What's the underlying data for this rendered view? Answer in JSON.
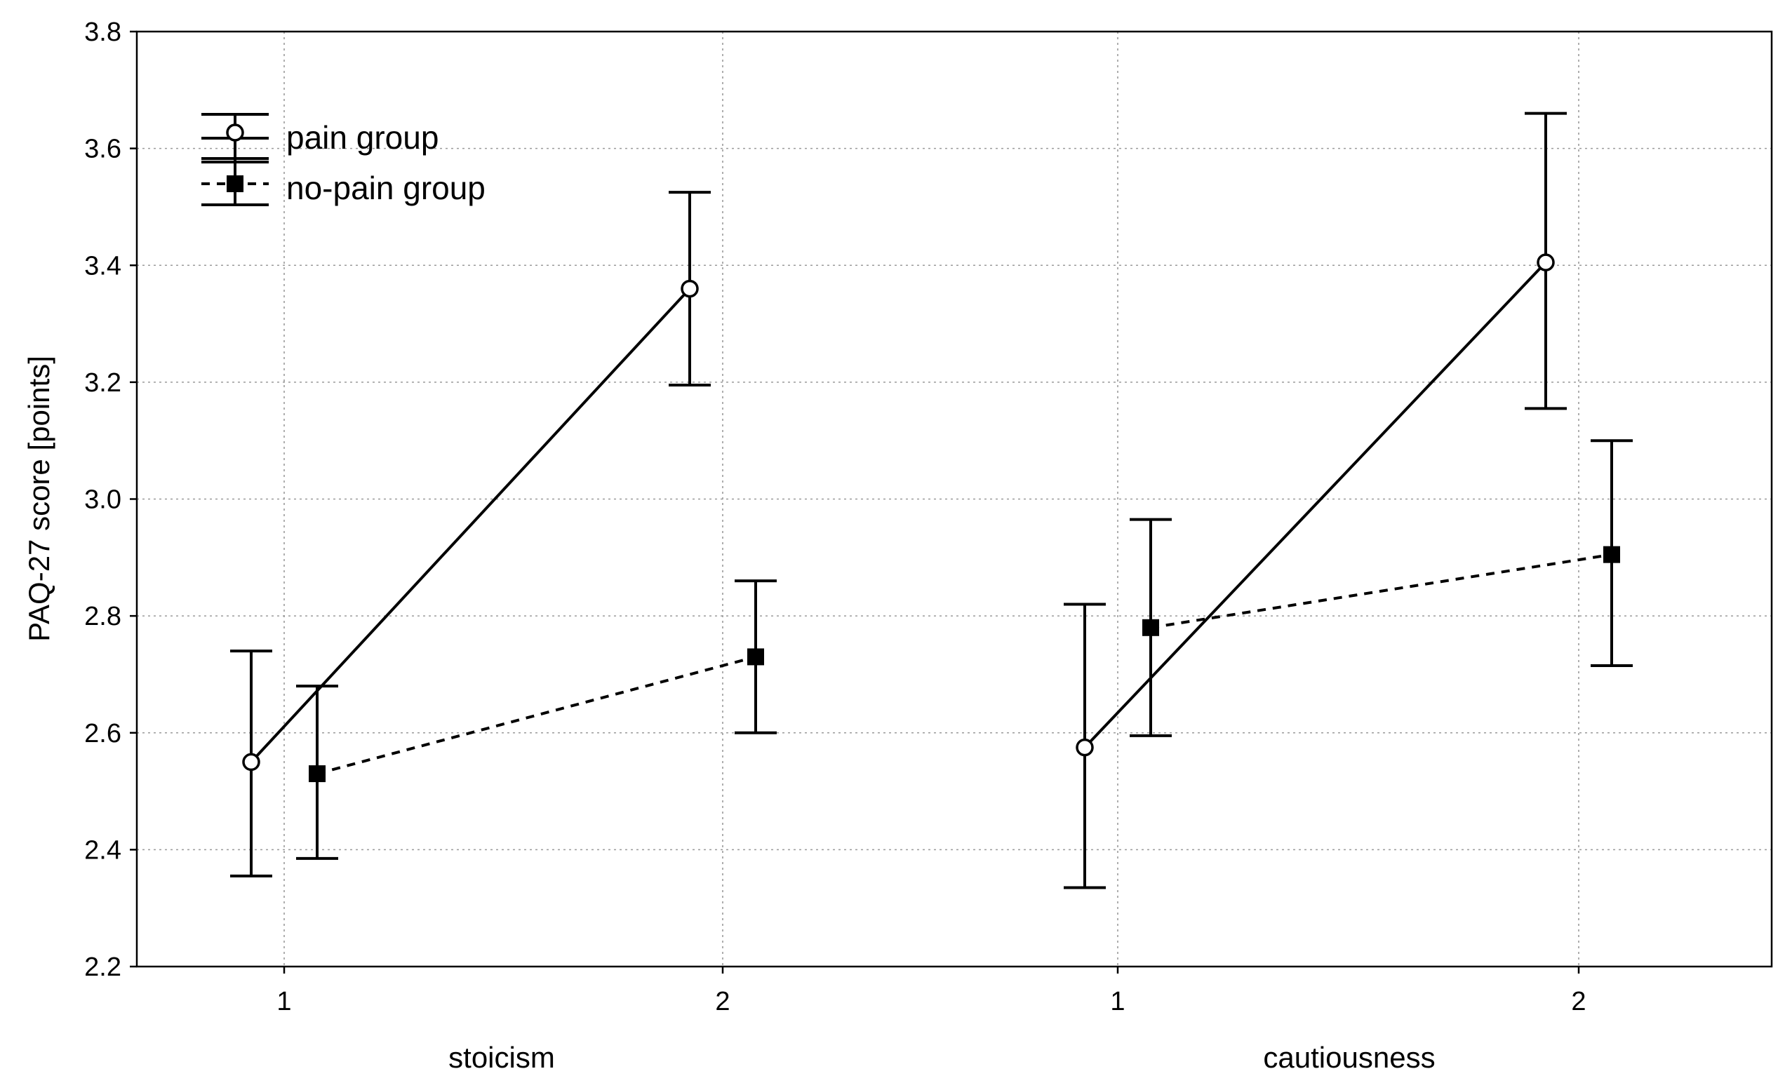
{
  "chart_data": {
    "type": "line",
    "ylabel": "PAQ-27 score [points]",
    "ylim": [
      2.2,
      3.8
    ],
    "yticks": [
      "2.2",
      "2.4",
      "2.6",
      "2.8",
      "3.0",
      "3.2",
      "3.4",
      "3.6",
      "3.8"
    ],
    "grid": true,
    "legend_position": "top-left",
    "panels": [
      {
        "name": "stoicism",
        "categories": [
          "1",
          "2"
        ]
      },
      {
        "name": "cautiousness",
        "categories": [
          "1",
          "2"
        ]
      }
    ],
    "series": [
      {
        "name": "pain group",
        "marker": "open-circle",
        "line": "solid",
        "values": {
          "stoicism": [
            {
              "x": "1",
              "y": 2.55,
              "low": 2.355,
              "high": 2.74
            },
            {
              "x": "2",
              "y": 3.36,
              "low": 3.195,
              "high": 3.525
            }
          ],
          "cautiousness": [
            {
              "x": "1",
              "y": 2.575,
              "low": 2.335,
              "high": 2.82
            },
            {
              "x": "2",
              "y": 3.405,
              "low": 3.155,
              "high": 3.66
            }
          ]
        }
      },
      {
        "name": "no-pain group",
        "marker": "filled-square",
        "line": "dashed",
        "values": {
          "stoicism": [
            {
              "x": "1",
              "y": 2.53,
              "low": 2.385,
              "high": 2.68
            },
            {
              "x": "2",
              "y": 2.73,
              "low": 2.6,
              "high": 2.86
            }
          ],
          "cautiousness": [
            {
              "x": "1",
              "y": 2.78,
              "low": 2.595,
              "high": 2.965
            },
            {
              "x": "2",
              "y": 2.905,
              "low": 2.715,
              "high": 3.1
            }
          ]
        }
      }
    ]
  }
}
